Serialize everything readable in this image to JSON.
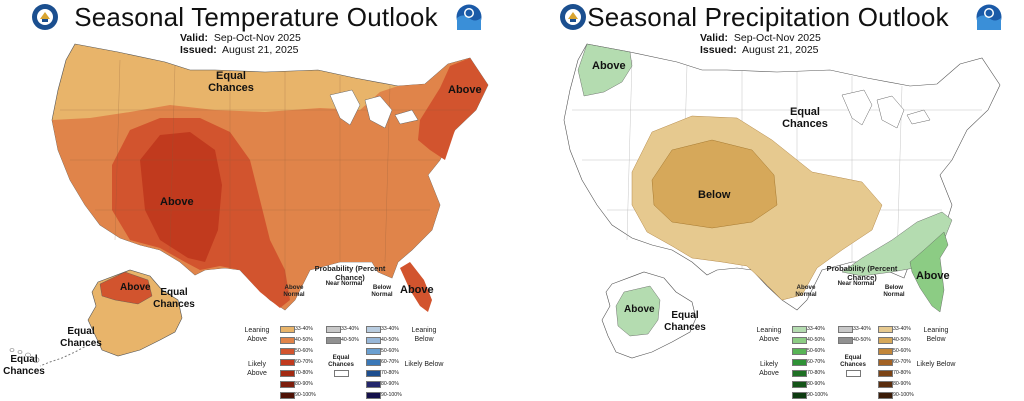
{
  "left": {
    "title": "Seasonal Temperature Outlook",
    "valid_label": "Valid:",
    "valid_value": "Sep-Oct-Nov 2025",
    "issued_label": "Issued:",
    "issued_value": "August 21, 2025",
    "map_labels": {
      "equal_chances_north": "Equal Chances",
      "above_northeast": "Above",
      "above_southwest": "Above",
      "above_florida": "Above",
      "above_alaska": "Above",
      "equal_chances_alaska": "Equal Chances",
      "equal_chances_aleutians": "Equal Chances",
      "equal_chances_hawaii": "Equal Chances"
    },
    "legend": {
      "heading": "Probability (Percent Chance)",
      "col_a": "Above Normal",
      "col_n": "Near Normal",
      "col_b": "Below Normal",
      "leaning_left": "Leaning Above",
      "likely_left": "Likely Above",
      "leaning_right": "Leaning Below",
      "likely_right": "Likely Below",
      "equal_chances": "Equal Chances"
    }
  },
  "right": {
    "title": "Seasonal Precipitation Outlook",
    "valid_label": "Valid:",
    "valid_value": "Sep-Oct-Nov 2025",
    "issued_label": "Issued:",
    "issued_value": "August 21, 2025",
    "map_labels": {
      "above_northwest": "Above",
      "equal_chances_center": "Equal Chances",
      "below_center": "Below",
      "above_southeast": "Above",
      "above_alaska": "Above",
      "equal_chances_alaska": "Equal Chances"
    },
    "legend": {
      "heading": "Probability (Percent Chance)",
      "col_a": "Above Normal",
      "col_n": "Near Normal",
      "col_b": "Below Normal",
      "leaning_left": "Leaning Above",
      "likely_left": "Likely Above",
      "leaning_right": "Leaning Below",
      "likely_right": "Likely Below",
      "equal_chances": "Equal Chances"
    }
  },
  "legend_ranges": [
    "33-40%",
    "40-50%",
    "50-60%",
    "60-70%",
    "70-80%",
    "80-90%",
    "90-100%"
  ],
  "near_ranges": [
    "33-40%",
    "40-50%"
  ],
  "colors": {
    "temp_above": [
      "#e8b46a",
      "#e0844a",
      "#d2542e",
      "#c13a1e",
      "#a32a12",
      "#7c1d0c",
      "#4e1206"
    ],
    "temp_below": [
      "#b8cce0",
      "#98b7d8",
      "#6a9fd0",
      "#3a78b8",
      "#1d4e8f",
      "#23266b",
      "#14104a"
    ],
    "precip_above": [
      "#b4dcb0",
      "#8ccc84",
      "#58b456",
      "#2f9236",
      "#1f7024",
      "#145418",
      "#0d3a10"
    ],
    "precip_below": [
      "#e6c98f",
      "#d6a85a",
      "#c2863a",
      "#a36224",
      "#7c4416",
      "#5a2d0e",
      "#3b1c08"
    ],
    "near": [
      "#c8c8c8",
      "#909090"
    ]
  },
  "icons": [
    "commerce-seal-icon",
    "noaa-logo-icon"
  ]
}
